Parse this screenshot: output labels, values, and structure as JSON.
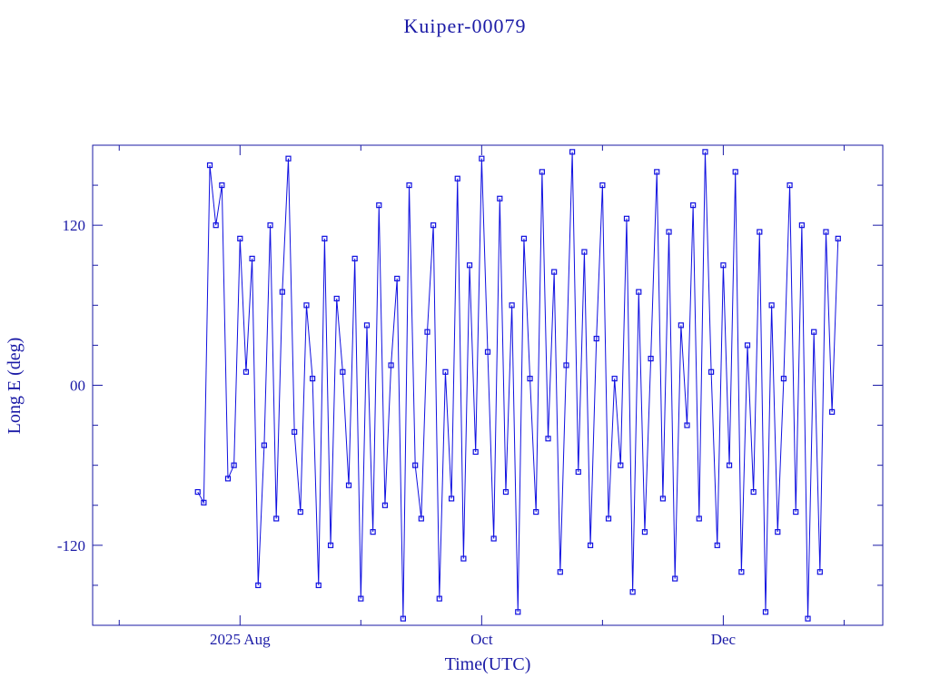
{
  "chart_data": {
    "type": "line",
    "title": "Kuiper-00079",
    "x_label": "Time(UTC)",
    "y_label": "Long E (deg)",
    "xlim": [
      6.78,
      13.32
    ],
    "xticks": [
      {
        "value": 8,
        "label": "2025 Aug"
      },
      {
        "value": 10,
        "label": "Oct"
      },
      {
        "value": 12,
        "label": "Dec"
      }
    ],
    "xminorticks": [
      7,
      9,
      11,
      13
    ],
    "ylim": [
      -180,
      180
    ],
    "yticks": [
      -120,
      {
        "value": 0,
        "label": "00"
      },
      120
    ],
    "yminorticks": [
      -150,
      -90,
      -60,
      -30,
      30,
      60,
      90,
      150
    ],
    "markers": true,
    "series": [
      {
        "color": "#1010e0",
        "x": [
          7.65,
          7.7,
          7.75,
          7.8,
          7.85,
          7.9,
          7.95,
          8,
          8.05,
          8.1,
          8.15,
          8.2,
          8.25,
          8.3,
          8.35,
          8.4,
          8.45,
          8.5,
          8.55,
          8.6,
          8.65,
          8.7,
          8.75,
          8.8,
          8.85,
          8.9,
          8.95,
          9,
          9.05,
          9.1,
          9.15,
          9.2,
          9.25,
          9.3,
          9.35,
          9.4,
          9.45,
          9.5,
          9.55,
          9.6,
          9.65,
          9.7,
          9.75,
          9.8,
          9.85,
          9.9,
          9.95,
          10,
          10.05,
          10.1,
          10.15,
          10.2,
          10.25,
          10.3,
          10.35,
          10.4,
          10.45,
          10.5,
          10.55,
          10.6,
          10.65,
          10.7,
          10.75,
          10.8,
          10.85,
          10.9,
          10.95,
          11,
          11.05,
          11.1,
          11.15,
          11.2,
          11.25,
          11.3,
          11.35,
          11.4,
          11.45,
          11.5,
          11.55,
          11.6,
          11.65,
          11.7,
          11.75,
          11.8,
          11.85,
          11.9,
          11.95,
          12,
          12.05,
          12.1,
          12.15,
          12.2,
          12.25,
          12.3,
          12.35,
          12.4,
          12.45,
          12.5,
          12.55,
          12.6,
          12.65,
          12.7,
          12.75,
          12.8,
          12.85,
          12.9,
          12.95
        ],
        "values": [
          -80,
          -88,
          165,
          120,
          150,
          -70,
          -60,
          110,
          10,
          95,
          -150,
          -45,
          120,
          -100,
          70,
          170,
          -35,
          -95,
          60,
          5,
          -150,
          110,
          -120,
          65,
          10,
          -75,
          95,
          -160,
          45,
          -110,
          135,
          -90,
          15,
          80,
          -175,
          150,
          -60,
          -100,
          40,
          120,
          -160,
          10,
          -85,
          155,
          -130,
          90,
          -50,
          170,
          25,
          -115,
          140,
          -80,
          60,
          -170,
          110,
          5,
          -95,
          160,
          -40,
          85,
          -140,
          15,
          175,
          -65,
          100,
          -120,
          35,
          150,
          -100,
          5,
          -60,
          125,
          -155,
          70,
          -110,
          20,
          160,
          -85,
          115,
          -145,
          45,
          -30,
          135,
          -100,
          175,
          10,
          -120,
          90,
          -60,
          160,
          -140,
          30,
          -80,
          115,
          -170,
          60,
          -110,
          5,
          150,
          -95,
          120,
          -175,
          40,
          -140,
          115,
          -20,
          110
        ]
      }
    ]
  }
}
